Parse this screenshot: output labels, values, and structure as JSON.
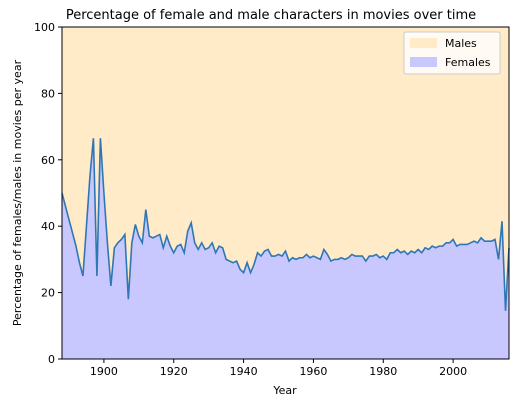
{
  "chart_data": {
    "type": "area",
    "title": "Percentage of female and male characters in movies over time",
    "xlabel": "Year",
    "ylabel": "Percentage of females/males in movies per year",
    "xlim": [
      1888,
      2016
    ],
    "ylim": [
      0,
      100
    ],
    "xticks": [
      1900,
      1920,
      1940,
      1960,
      1980,
      2000
    ],
    "yticks": [
      0,
      20,
      40,
      60,
      80,
      100
    ],
    "grid": false,
    "legend_position": "top-right",
    "series": [
      {
        "name": "Males",
        "color": "#ffebc8",
        "description": "fills from the female line up to 100"
      },
      {
        "name": "Females",
        "color": "#c8c8ff",
        "line_color": "#2f77b4",
        "x": [
          1888,
          1889,
          1890,
          1891,
          1892,
          1893,
          1894,
          1895,
          1896,
          1897,
          1898,
          1899,
          1900,
          1901,
          1902,
          1903,
          1904,
          1905,
          1906,
          1907,
          1908,
          1909,
          1910,
          1911,
          1912,
          1913,
          1914,
          1915,
          1916,
          1917,
          1918,
          1919,
          1920,
          1921,
          1922,
          1923,
          1924,
          1925,
          1926,
          1927,
          1928,
          1929,
          1930,
          1931,
          1932,
          1933,
          1934,
          1935,
          1936,
          1937,
          1938,
          1939,
          1940,
          1941,
          1942,
          1943,
          1944,
          1945,
          1946,
          1947,
          1948,
          1949,
          1950,
          1951,
          1952,
          1953,
          1954,
          1955,
          1956,
          1957,
          1958,
          1959,
          1960,
          1961,
          1962,
          1963,
          1964,
          1965,
          1966,
          1967,
          1968,
          1969,
          1970,
          1971,
          1972,
          1973,
          1974,
          1975,
          1976,
          1977,
          1978,
          1979,
          1980,
          1981,
          1982,
          1983,
          1984,
          1985,
          1986,
          1987,
          1988,
          1989,
          1990,
          1991,
          1992,
          1993,
          1994,
          1995,
          1996,
          1997,
          1998,
          1999,
          2000,
          2001,
          2002,
          2003,
          2004,
          2005,
          2006,
          2007,
          2008,
          2009,
          2010,
          2011,
          2012,
          2013,
          2014,
          2015,
          2016
        ],
        "values": [
          50,
          46,
          42,
          38,
          34,
          29,
          25,
          40,
          55,
          66.5,
          25,
          66.5,
          50,
          35,
          22,
          33.5,
          35,
          36,
          37.5,
          18,
          35,
          40.5,
          37,
          35,
          45,
          37,
          36.5,
          37,
          37.5,
          33.5,
          37,
          34,
          32,
          34,
          34.5,
          32,
          38.5,
          41,
          35,
          33,
          35,
          33,
          33.5,
          35,
          32,
          34,
          33.5,
          30,
          29.5,
          29,
          29.5,
          27,
          26,
          29,
          26,
          28.5,
          32,
          31,
          32.5,
          33,
          31,
          31,
          31.5,
          31,
          32.5,
          29.5,
          30.5,
          30,
          30.5,
          30.5,
          31.5,
          30.5,
          31,
          30.5,
          30,
          33,
          31.5,
          29.5,
          30,
          30,
          30.5,
          30,
          30.5,
          31.5,
          31,
          31,
          31,
          29.5,
          31,
          31,
          31.5,
          30.5,
          31,
          30,
          32,
          32,
          33,
          32,
          32.5,
          31.5,
          32.5,
          32,
          33,
          32,
          33.5,
          33,
          34,
          33.5,
          34,
          34,
          35,
          35,
          36,
          34,
          34.5,
          34.5,
          34.5,
          35,
          35.5,
          35,
          36.5,
          35.5,
          35.5,
          35.5,
          36,
          30,
          41.5,
          14.5,
          33.5
        ]
      }
    ]
  }
}
